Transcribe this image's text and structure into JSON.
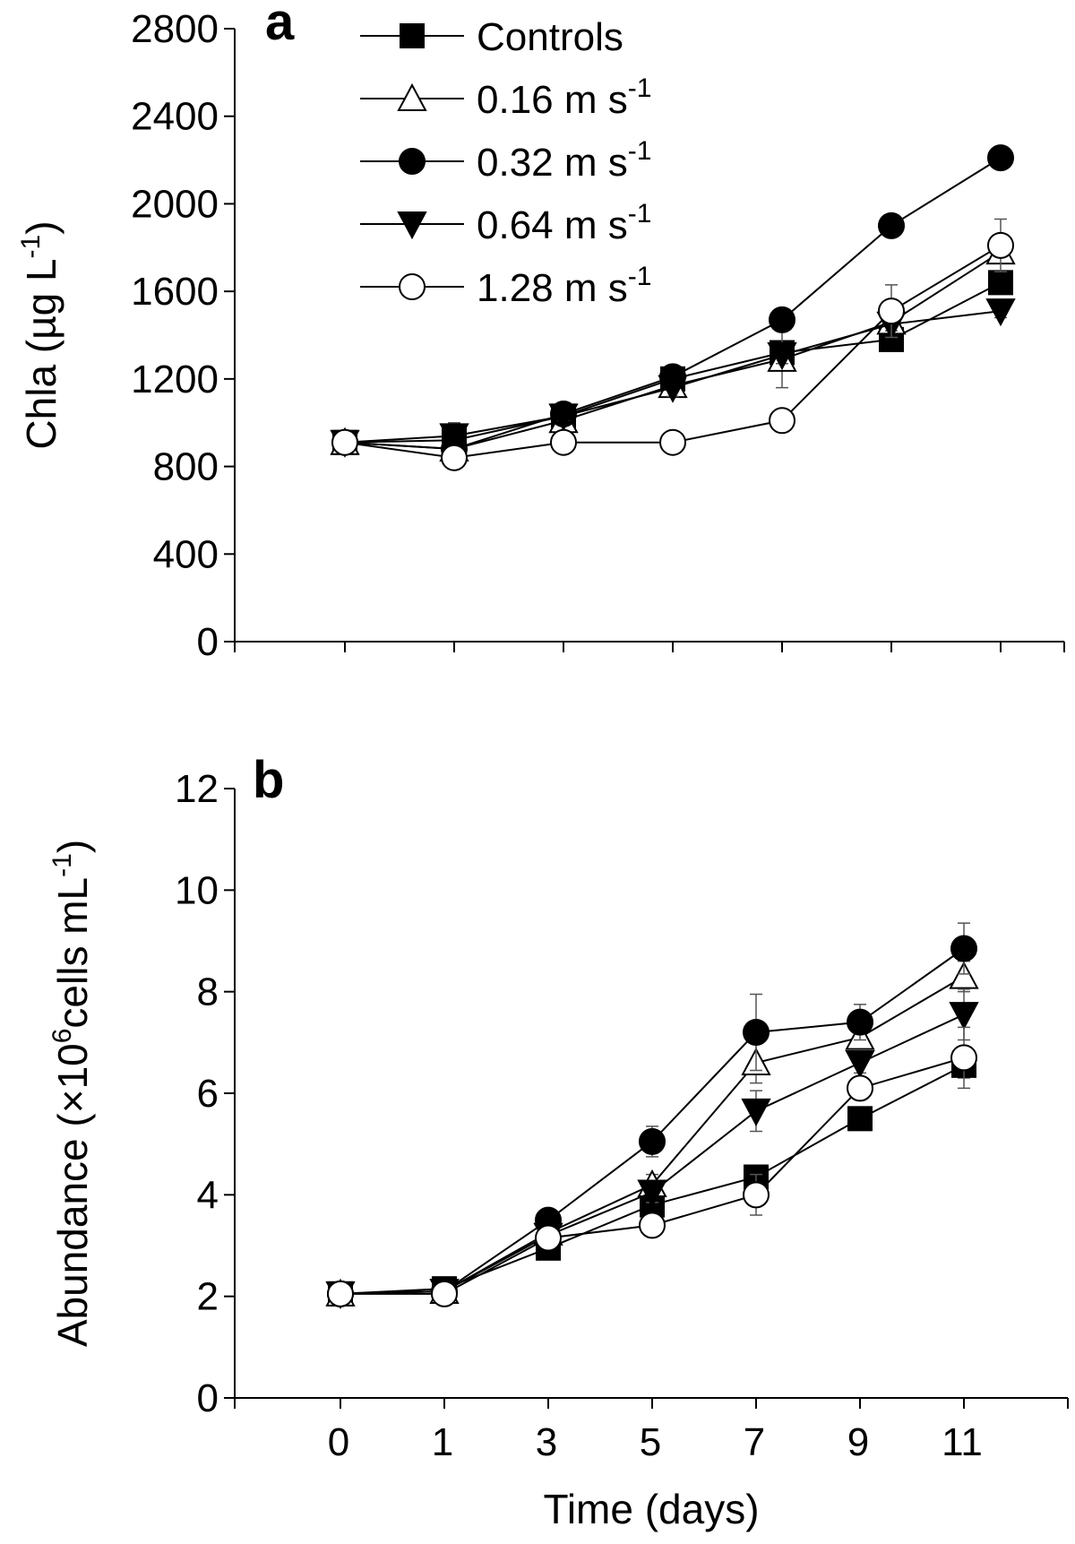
{
  "chart_data": [
    {
      "type": "line",
      "panel": "a",
      "ylabel": "Chla (µg L",
      "ylabel_sup": "-1",
      "ylabel_close": ")",
      "xlabel": "",
      "ylim": [
        0,
        2800
      ],
      "yticks": [
        0,
        400,
        800,
        1200,
        1600,
        2000,
        2400,
        2800
      ],
      "y_tick_labels": [
        "0",
        "400",
        "800",
        "1200",
        "1600",
        "2000",
        "2400",
        "2800"
      ],
      "x_positions": [
        0,
        1,
        2,
        3,
        4,
        5,
        6
      ],
      "xlim": [
        -1,
        6.9
      ],
      "series": [
        {
          "name": "Controls",
          "marker": "square-filled",
          "values": [
            910,
            920,
            1030,
            1200,
            1320,
            1380,
            1640
          ],
          "errors": [
            10,
            20,
            20,
            20,
            30,
            30,
            30
          ]
        },
        {
          "name": "0.16 m s",
          "name_sup": "-1",
          "marker": "triangle-up-open",
          "values": [
            910,
            880,
            1010,
            1170,
            1290,
            1460,
            1780
          ],
          "errors": [
            10,
            30,
            30,
            50,
            130,
            50,
            30
          ]
        },
        {
          "name": "0.32 m s",
          "name_sup": "-1",
          "marker": "circle-filled",
          "values": [
            910,
            880,
            1040,
            1210,
            1470,
            1900,
            2210
          ],
          "errors": [
            10,
            20,
            20,
            20,
            20,
            30,
            20
          ]
        },
        {
          "name": "0.64 m s",
          "name_sup": "-1",
          "marker": "triangle-down-filled",
          "values": [
            910,
            940,
            1030,
            1160,
            1310,
            1450,
            1510
          ],
          "errors": [
            10,
            60,
            20,
            40,
            40,
            30,
            30
          ]
        },
        {
          "name": "1.28 m s",
          "name_sup": "-1",
          "marker": "circle-open",
          "values": [
            910,
            840,
            910,
            910,
            1010,
            1510,
            1810
          ],
          "errors": [
            10,
            20,
            20,
            20,
            20,
            120,
            120
          ]
        }
      ]
    },
    {
      "type": "line",
      "panel": "b",
      "ylabel": "Abundance (×10",
      "ylabel_sup": "6",
      "ylabel_rest": "cells mL",
      "ylabel_sup2": "-1",
      "ylabel_close": ")",
      "xlabel": "Time (days)",
      "ylim": [
        0,
        12
      ],
      "yticks": [
        0,
        2,
        4,
        6,
        8,
        10,
        12
      ],
      "y_tick_labels": [
        "0",
        "2",
        "4",
        "6",
        "8",
        "10",
        "12"
      ],
      "x_positions": [
        0,
        1,
        2,
        3,
        4,
        5,
        6
      ],
      "x_tick_labels": [
        "0",
        "1",
        "3",
        "5",
        "7",
        "9",
        "11"
      ],
      "xlim": [
        -1,
        6.9
      ],
      "series": [
        {
          "name": "Controls",
          "marker": "square-filled",
          "values": [
            2.05,
            2.15,
            2.95,
            3.8,
            4.35,
            5.5,
            6.55
          ],
          "errors": [
            0.05,
            0.1,
            0.1,
            0.1,
            0.1,
            0.2,
            0.25
          ]
        },
        {
          "name": "0.16 m s",
          "name_sup": "-1",
          "marker": "triangle-up-open",
          "values": [
            2.05,
            2.1,
            3.25,
            4.2,
            6.6,
            7.1,
            8.3
          ],
          "errors": [
            0.05,
            0.1,
            0.15,
            0.2,
            0.4,
            0.2,
            0.3
          ]
        },
        {
          "name": "0.32 m s",
          "name_sup": "-1",
          "marker": "circle-filled",
          "values": [
            2.05,
            2.1,
            3.5,
            5.05,
            7.2,
            7.4,
            8.85
          ],
          "errors": [
            0.05,
            0.1,
            0.15,
            0.3,
            0.75,
            0.35,
            0.5
          ]
        },
        {
          "name": "0.64 m s",
          "name_sup": "-1",
          "marker": "triangle-down-filled",
          "values": [
            2.05,
            2.1,
            3.2,
            4.05,
            5.65,
            6.6,
            7.55
          ],
          "errors": [
            0.05,
            0.1,
            0.15,
            0.2,
            0.4,
            0.2,
            0.5
          ]
        },
        {
          "name": "1.28 m s",
          "name_sup": "-1",
          "marker": "circle-open",
          "values": [
            2.05,
            2.05,
            3.15,
            3.4,
            4.0,
            6.1,
            6.7
          ],
          "errors": [
            0.05,
            0.1,
            0.2,
            0.15,
            0.4,
            0.15,
            0.6
          ]
        }
      ]
    }
  ]
}
